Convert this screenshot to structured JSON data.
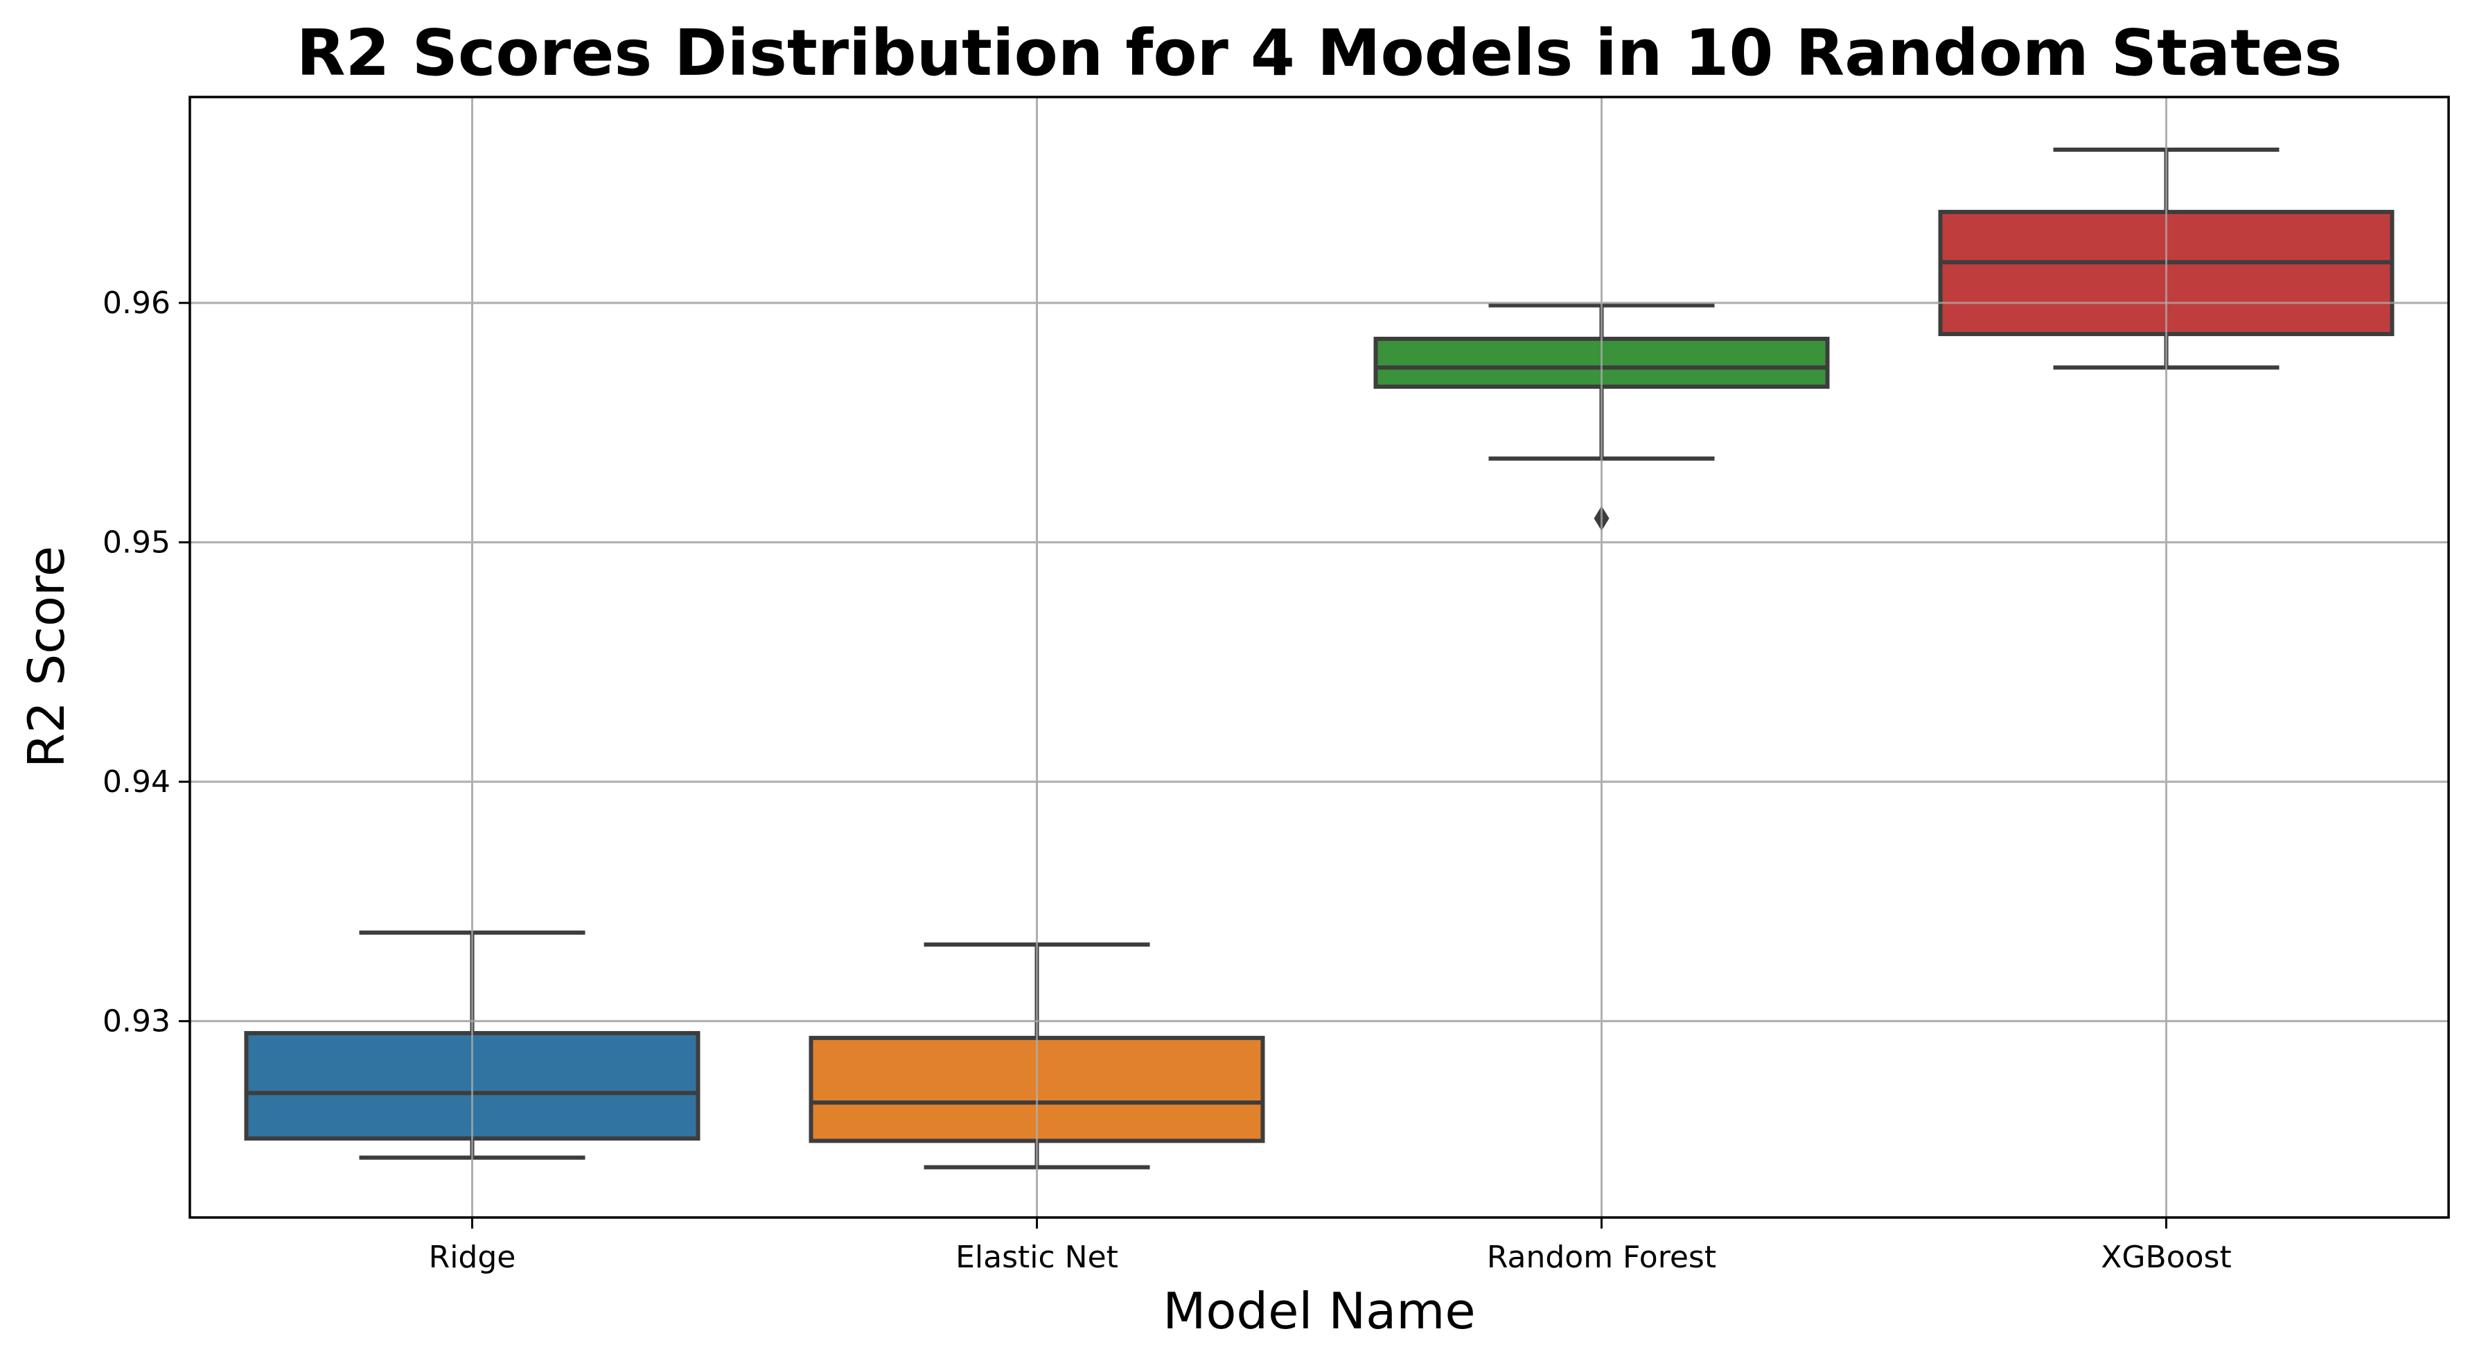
{
  "chart_data": {
    "type": "box",
    "title": "R2 Scores Distribution for 4 Models in 10 Random States",
    "xlabel": "Model Name",
    "ylabel": "R2 Score",
    "ylim": [
      0.9218,
      0.9686
    ],
    "yticks": [
      0.93,
      0.94,
      0.95,
      0.96
    ],
    "ytick_labels": [
      "0.93",
      "0.94",
      "0.95",
      "0.96"
    ],
    "grid": true,
    "categories": [
      "Ridge",
      "Elastic Net",
      "Random Forest",
      "XGBoost"
    ],
    "boxes": [
      {
        "name": "Ridge",
        "color": "#3274a1",
        "whisker_low": 0.9243,
        "q1": 0.9251,
        "median": 0.927,
        "q3": 0.9295,
        "whisker_high": 0.9337,
        "fliers": []
      },
      {
        "name": "Elastic Net",
        "color": "#e1812c",
        "whisker_low": 0.9239,
        "q1": 0.925,
        "median": 0.9266,
        "q3": 0.9293,
        "whisker_high": 0.9332,
        "fliers": []
      },
      {
        "name": "Random Forest",
        "color": "#3a923a",
        "whisker_low": 0.9535,
        "q1": 0.9565,
        "median": 0.9573,
        "q3": 0.9585,
        "whisker_high": 0.9599,
        "fliers": [
          0.951
        ]
      },
      {
        "name": "XGBoost",
        "color": "#c03d3e",
        "whisker_low": 0.9573,
        "q1": 0.9587,
        "median": 0.9617,
        "q3": 0.9638,
        "whisker_high": 0.9664,
        "fliers": []
      }
    ]
  }
}
